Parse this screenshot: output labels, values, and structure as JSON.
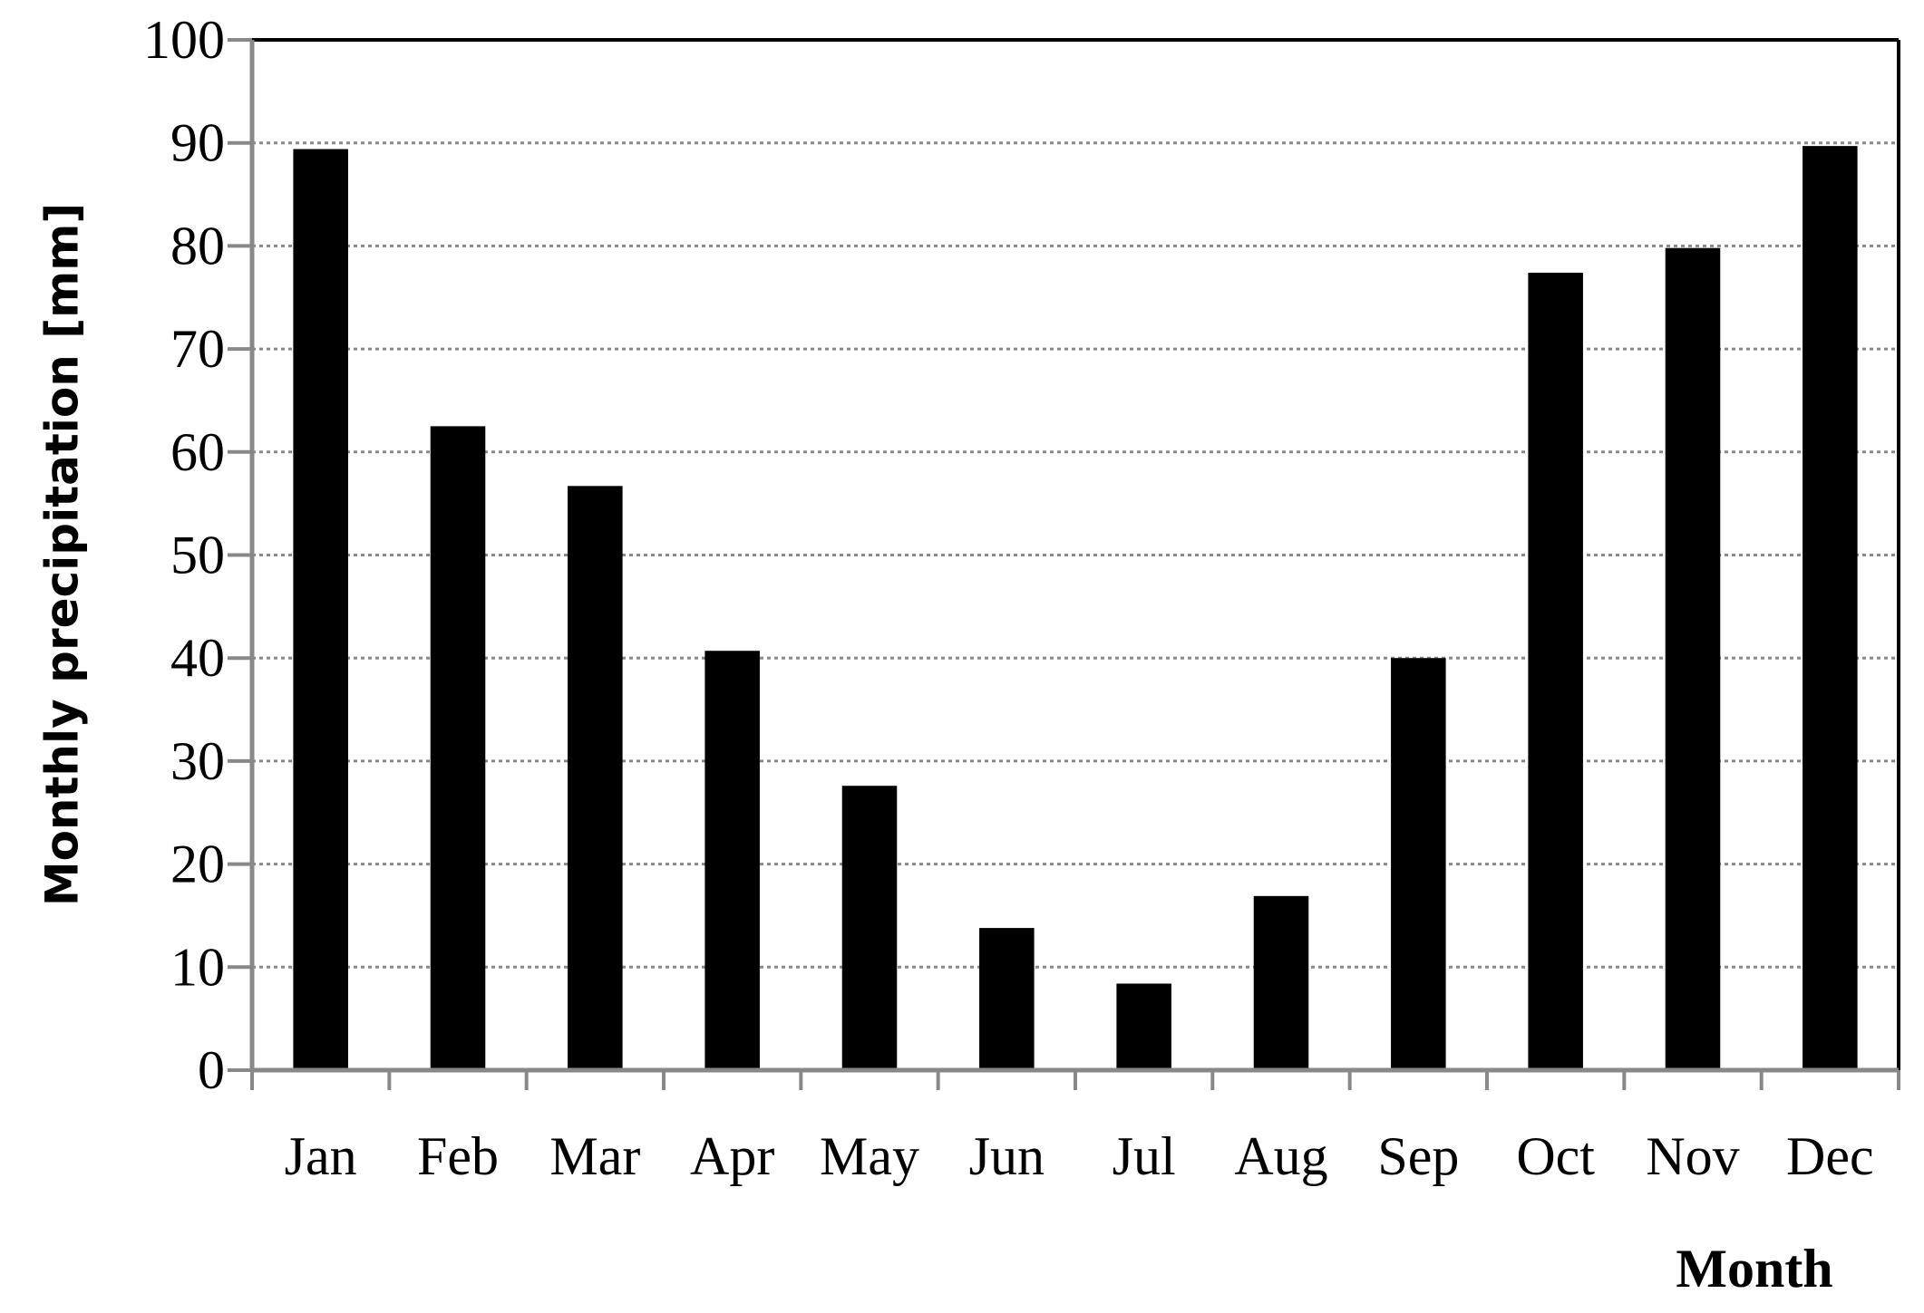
{
  "chart_data": {
    "type": "bar",
    "y_label": "Monthly precipitation [mm]",
    "x_label": "Month",
    "categories": [
      "Jan",
      "Feb",
      "Mar",
      "Apr",
      "May",
      "Jun",
      "Jul",
      "Aug",
      "Sep",
      "Oct",
      "Nov",
      "Dec"
    ],
    "values": [
      89.4,
      62.5,
      56.7,
      40.7,
      27.6,
      13.8,
      8.4,
      16.9,
      40,
      77.4,
      79.8,
      89.7
    ],
    "color": "#000000",
    "ylim": [
      0,
      100
    ],
    "yticks": [
      0,
      10,
      20,
      30,
      40,
      50,
      60,
      70,
      80,
      90,
      100
    ],
    "grid": true
  }
}
